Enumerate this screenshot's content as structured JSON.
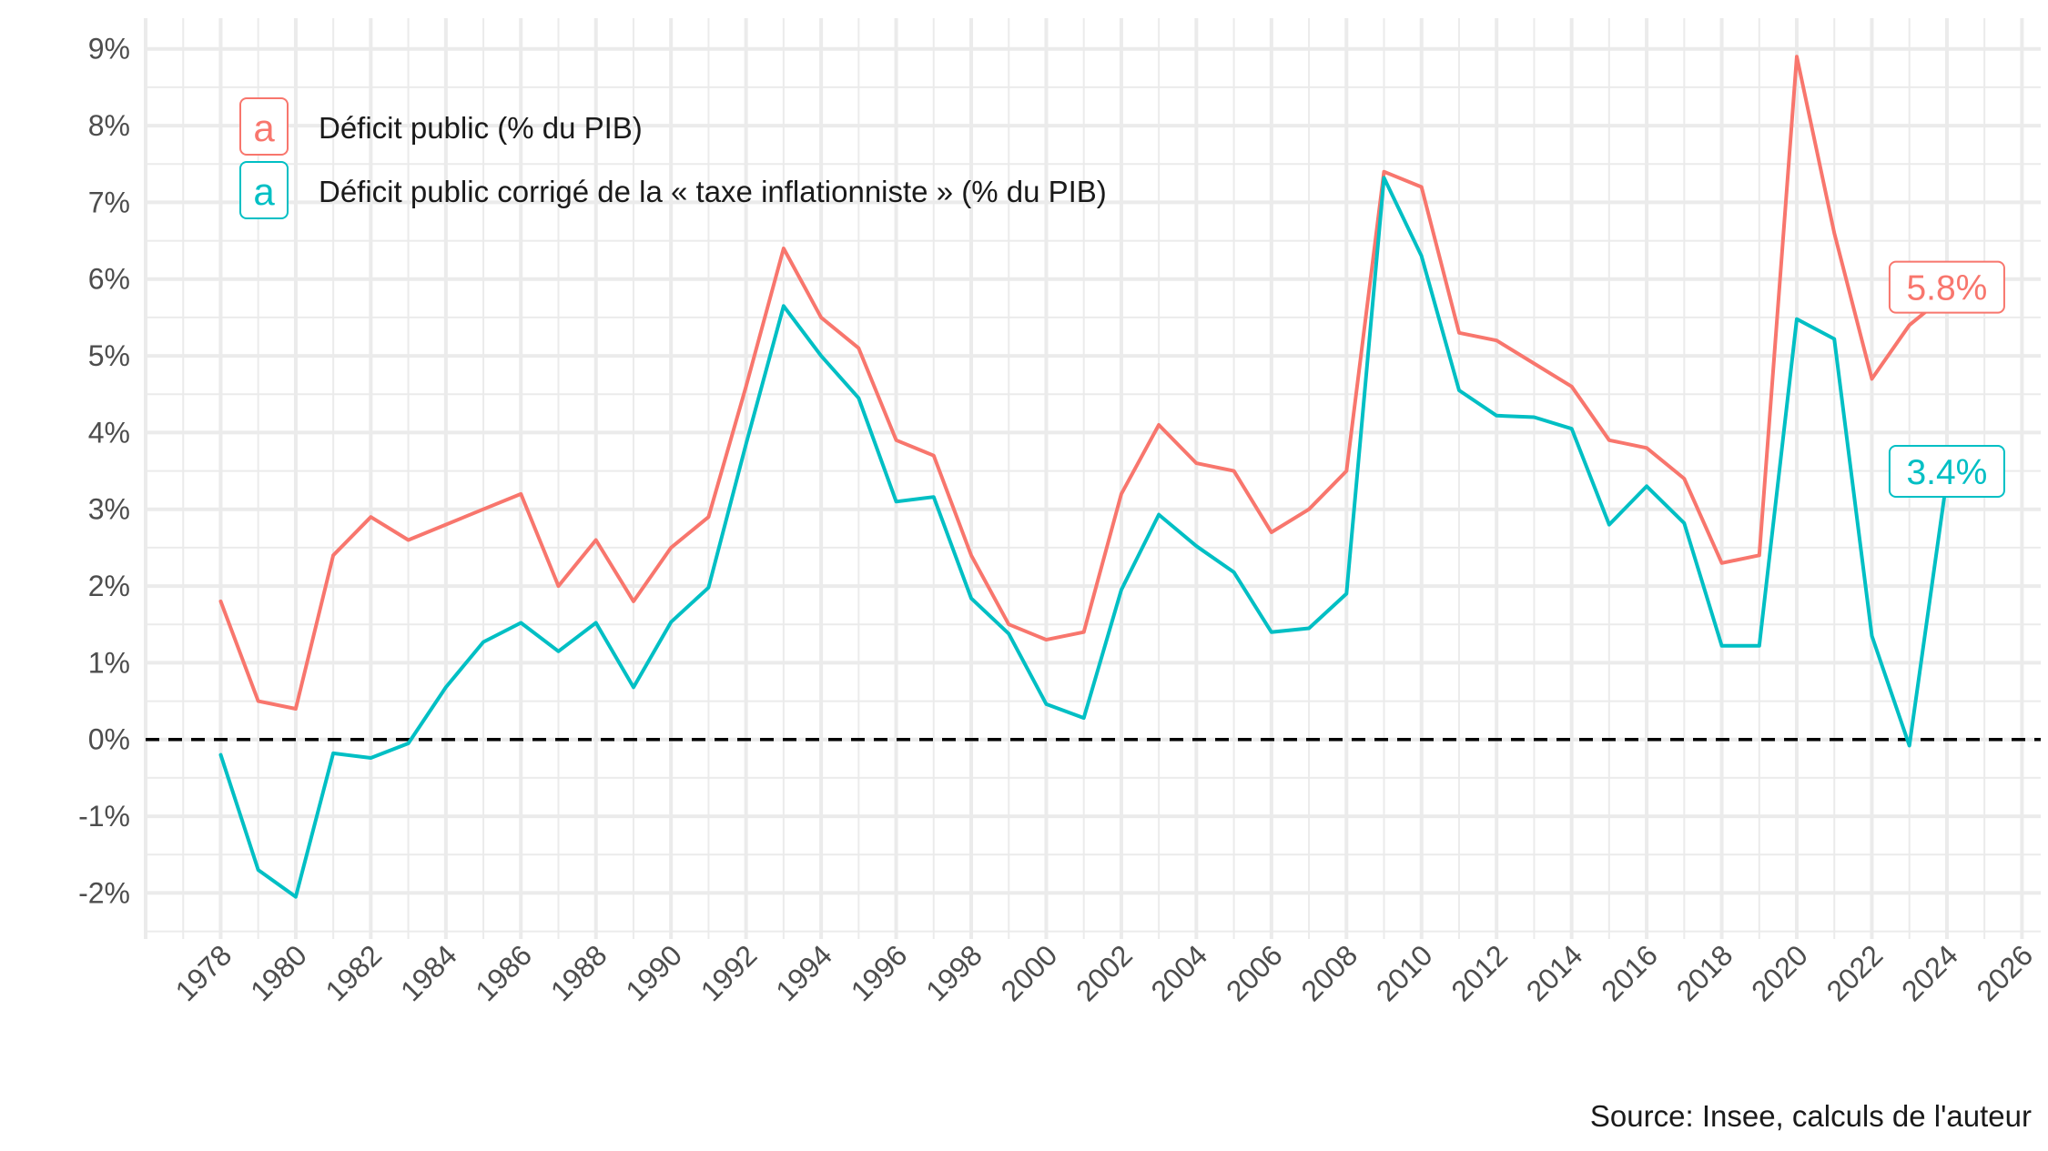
{
  "chart_data": {
    "type": "line",
    "caption": "Source: Insee, calculs de l'auteur",
    "x": [
      1978,
      1979,
      1980,
      1981,
      1982,
      1983,
      1984,
      1985,
      1986,
      1987,
      1988,
      1989,
      1990,
      1991,
      1992,
      1993,
      1994,
      1995,
      1996,
      1997,
      1998,
      1999,
      2000,
      2001,
      2002,
      2003,
      2004,
      2005,
      2006,
      2007,
      2008,
      2009,
      2010,
      2011,
      2012,
      2013,
      2014,
      2015,
      2016,
      2017,
      2018,
      2019,
      2020,
      2021,
      2022,
      2023,
      2024
    ],
    "xlim": [
      1976,
      2026.5
    ],
    "x_ticks": [
      "1978",
      "1980",
      "1982",
      "1984",
      "1986",
      "1988",
      "1990",
      "1992",
      "1994",
      "1996",
      "1998",
      "2000",
      "2002",
      "2004",
      "2006",
      "2008",
      "2010",
      "2012",
      "2014",
      "2016",
      "2018",
      "2020",
      "2022",
      "2024",
      "2026"
    ],
    "ylim": [
      -2.6,
      9.4
    ],
    "y_ticks": [
      "-2%",
      "-1%",
      "0%",
      "1%",
      "2%",
      "3%",
      "4%",
      "5%",
      "6%",
      "7%",
      "8%",
      "9%"
    ],
    "grid": true,
    "reference_line": {
      "y": 0,
      "style": "dashed",
      "color": "#000000"
    },
    "legend_position": "top-left",
    "legend_key_glyph": "a",
    "series": [
      {
        "name": "Déficit public (% du PIB)",
        "color": "#F8766D",
        "values": [
          1.8,
          0.5,
          0.4,
          2.4,
          2.9,
          2.6,
          2.8,
          3.0,
          3.2,
          2.0,
          2.6,
          1.8,
          2.5,
          2.9,
          4.6,
          6.4,
          5.5,
          5.1,
          3.9,
          3.7,
          2.4,
          1.5,
          1.3,
          1.4,
          3.2,
          4.1,
          3.6,
          3.5,
          2.7,
          3.0,
          3.5,
          7.4,
          7.2,
          5.3,
          5.2,
          4.9,
          4.6,
          3.9,
          3.8,
          3.4,
          2.3,
          2.4,
          8.9,
          6.6,
          4.7,
          5.4,
          5.8
        ],
        "end_label": "5.8%"
      },
      {
        "name": "Déficit public corrigé de la « taxe inflationniste » (% du PIB)",
        "color": "#00BFC4",
        "values": [
          -0.2,
          -1.7,
          -2.05,
          -0.18,
          -0.24,
          -0.05,
          0.68,
          1.27,
          1.52,
          1.15,
          1.52,
          0.68,
          1.53,
          1.98,
          3.85,
          5.65,
          5.0,
          4.45,
          3.1,
          3.16,
          1.84,
          1.38,
          0.46,
          0.28,
          1.95,
          2.93,
          2.52,
          2.18,
          1.4,
          1.45,
          1.9,
          7.32,
          6.3,
          4.55,
          4.22,
          4.2,
          4.05,
          2.8,
          3.3,
          2.82,
          1.22,
          1.22,
          5.48,
          5.22,
          1.35,
          -0.08,
          3.4
        ],
        "end_label": "3.4%"
      }
    ]
  }
}
